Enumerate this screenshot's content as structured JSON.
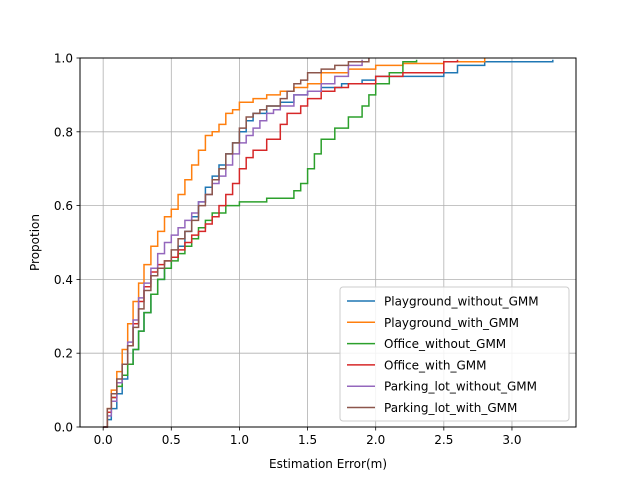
{
  "chart_data": {
    "type": "line",
    "step": true,
    "title": "",
    "xlabel": "Estimation Error(m)",
    "ylabel": "Propotion",
    "xlim": [
      -0.17,
      3.47
    ],
    "ylim": [
      0,
      1
    ],
    "xticks": [
      0.0,
      0.5,
      1.0,
      1.5,
      2.0,
      2.5,
      3.0
    ],
    "xtick_labels": [
      "0.0",
      "0.5",
      "1.0",
      "1.5",
      "2.0",
      "2.5",
      "3.0"
    ],
    "yticks": [
      0.0,
      0.2,
      0.4,
      0.6,
      0.8,
      1.0
    ],
    "ytick_labels": [
      "0.0",
      "0.2",
      "0.4",
      "0.6",
      "0.8",
      "1.0"
    ],
    "grid": true,
    "legend_position": "lower-right",
    "series": [
      {
        "name": "Playground_without_GMM",
        "color": "#1f77b4",
        "points": [
          [
            0.0,
            0.0
          ],
          [
            0.03,
            0.02
          ],
          [
            0.06,
            0.05
          ],
          [
            0.1,
            0.09
          ],
          [
            0.14,
            0.13
          ],
          [
            0.18,
            0.17
          ],
          [
            0.22,
            0.21
          ],
          [
            0.26,
            0.26
          ],
          [
            0.3,
            0.31
          ],
          [
            0.35,
            0.36
          ],
          [
            0.4,
            0.4
          ],
          [
            0.45,
            0.43
          ],
          [
            0.5,
            0.46
          ],
          [
            0.55,
            0.49
          ],
          [
            0.6,
            0.53
          ],
          [
            0.65,
            0.57
          ],
          [
            0.7,
            0.61
          ],
          [
            0.75,
            0.65
          ],
          [
            0.8,
            0.68
          ],
          [
            0.85,
            0.71
          ],
          [
            0.9,
            0.74
          ],
          [
            0.95,
            0.77
          ],
          [
            1.0,
            0.8
          ],
          [
            1.05,
            0.83
          ],
          [
            1.1,
            0.85
          ],
          [
            1.2,
            0.87
          ],
          [
            1.3,
            0.88
          ],
          [
            1.4,
            0.9
          ],
          [
            1.5,
            0.91
          ],
          [
            1.6,
            0.92
          ],
          [
            1.75,
            0.93
          ],
          [
            1.9,
            0.94
          ],
          [
            2.0,
            0.95
          ],
          [
            2.5,
            0.96
          ],
          [
            2.6,
            0.98
          ],
          [
            2.8,
            0.99
          ],
          [
            3.3,
            0.995
          ]
        ]
      },
      {
        "name": "Playground_with_GMM",
        "color": "#ff7f0e",
        "points": [
          [
            0.0,
            0.0
          ],
          [
            0.03,
            0.05
          ],
          [
            0.06,
            0.1
          ],
          [
            0.1,
            0.15
          ],
          [
            0.14,
            0.21
          ],
          [
            0.18,
            0.28
          ],
          [
            0.22,
            0.34
          ],
          [
            0.26,
            0.39
          ],
          [
            0.3,
            0.44
          ],
          [
            0.35,
            0.49
          ],
          [
            0.4,
            0.53
          ],
          [
            0.45,
            0.57
          ],
          [
            0.5,
            0.59
          ],
          [
            0.55,
            0.63
          ],
          [
            0.6,
            0.67
          ],
          [
            0.65,
            0.71
          ],
          [
            0.7,
            0.75
          ],
          [
            0.75,
            0.79
          ],
          [
            0.8,
            0.8
          ],
          [
            0.85,
            0.82
          ],
          [
            0.9,
            0.85
          ],
          [
            0.95,
            0.86
          ],
          [
            1.0,
            0.88
          ],
          [
            1.1,
            0.89
          ],
          [
            1.2,
            0.9
          ],
          [
            1.3,
            0.91
          ],
          [
            1.4,
            0.92
          ],
          [
            1.5,
            0.93
          ],
          [
            1.6,
            0.96
          ],
          [
            1.8,
            0.97
          ],
          [
            2.0,
            0.98
          ],
          [
            2.2,
            0.985
          ],
          [
            2.5,
            0.99
          ],
          [
            2.8,
            1.0
          ]
        ]
      },
      {
        "name": "Office_without_GMM",
        "color": "#2ca02c",
        "points": [
          [
            0.0,
            0.0
          ],
          [
            0.03,
            0.04
          ],
          [
            0.06,
            0.08
          ],
          [
            0.1,
            0.11
          ],
          [
            0.14,
            0.14
          ],
          [
            0.18,
            0.17
          ],
          [
            0.22,
            0.21
          ],
          [
            0.26,
            0.26
          ],
          [
            0.3,
            0.31
          ],
          [
            0.35,
            0.36
          ],
          [
            0.4,
            0.4
          ],
          [
            0.45,
            0.43
          ],
          [
            0.5,
            0.45
          ],
          [
            0.55,
            0.47
          ],
          [
            0.6,
            0.49
          ],
          [
            0.65,
            0.51
          ],
          [
            0.7,
            0.54
          ],
          [
            0.75,
            0.56
          ],
          [
            0.8,
            0.58
          ],
          [
            0.9,
            0.6
          ],
          [
            1.0,
            0.61
          ],
          [
            1.1,
            0.61
          ],
          [
            1.2,
            0.62
          ],
          [
            1.3,
            0.62
          ],
          [
            1.4,
            0.64
          ],
          [
            1.45,
            0.66
          ],
          [
            1.5,
            0.7
          ],
          [
            1.55,
            0.74
          ],
          [
            1.6,
            0.78
          ],
          [
            1.7,
            0.81
          ],
          [
            1.8,
            0.84
          ],
          [
            1.9,
            0.87
          ],
          [
            1.95,
            0.9
          ],
          [
            2.0,
            0.93
          ],
          [
            2.1,
            0.96
          ],
          [
            2.2,
            0.99
          ],
          [
            2.3,
            0.995
          ]
        ]
      },
      {
        "name": "Office_with_GMM",
        "color": "#d62728",
        "points": [
          [
            0.0,
            0.0
          ],
          [
            0.03,
            0.04
          ],
          [
            0.06,
            0.08
          ],
          [
            0.1,
            0.12
          ],
          [
            0.14,
            0.17
          ],
          [
            0.18,
            0.22
          ],
          [
            0.22,
            0.28
          ],
          [
            0.26,
            0.34
          ],
          [
            0.3,
            0.38
          ],
          [
            0.35,
            0.42
          ],
          [
            0.4,
            0.44
          ],
          [
            0.45,
            0.45
          ],
          [
            0.5,
            0.46
          ],
          [
            0.55,
            0.48
          ],
          [
            0.6,
            0.5
          ],
          [
            0.65,
            0.52
          ],
          [
            0.7,
            0.53
          ],
          [
            0.75,
            0.55
          ],
          [
            0.8,
            0.57
          ],
          [
            0.85,
            0.6
          ],
          [
            0.9,
            0.63
          ],
          [
            0.95,
            0.66
          ],
          [
            1.0,
            0.7
          ],
          [
            1.05,
            0.73
          ],
          [
            1.1,
            0.75
          ],
          [
            1.2,
            0.78
          ],
          [
            1.3,
            0.82
          ],
          [
            1.35,
            0.85
          ],
          [
            1.45,
            0.87
          ],
          [
            1.5,
            0.89
          ],
          [
            1.6,
            0.91
          ],
          [
            1.7,
            0.92
          ],
          [
            1.8,
            0.93
          ],
          [
            2.0,
            0.95
          ],
          [
            2.2,
            0.96
          ],
          [
            2.5,
            0.99
          ],
          [
            2.6,
            0.995
          ]
        ]
      },
      {
        "name": "Parking_lot_without_GMM",
        "color": "#9467bd",
        "points": [
          [
            0.0,
            0.0
          ],
          [
            0.03,
            0.03
          ],
          [
            0.06,
            0.07
          ],
          [
            0.1,
            0.12
          ],
          [
            0.14,
            0.17
          ],
          [
            0.18,
            0.23
          ],
          [
            0.22,
            0.29
          ],
          [
            0.26,
            0.35
          ],
          [
            0.3,
            0.39
          ],
          [
            0.35,
            0.43
          ],
          [
            0.4,
            0.47
          ],
          [
            0.45,
            0.5
          ],
          [
            0.5,
            0.52
          ],
          [
            0.55,
            0.54
          ],
          [
            0.6,
            0.56
          ],
          [
            0.65,
            0.58
          ],
          [
            0.7,
            0.61
          ],
          [
            0.75,
            0.63
          ],
          [
            0.8,
            0.66
          ],
          [
            0.85,
            0.68
          ],
          [
            0.9,
            0.71
          ],
          [
            0.95,
            0.74
          ],
          [
            1.0,
            0.77
          ],
          [
            1.05,
            0.79
          ],
          [
            1.1,
            0.81
          ],
          [
            1.15,
            0.83
          ],
          [
            1.2,
            0.85
          ],
          [
            1.25,
            0.86
          ],
          [
            1.3,
            0.87
          ],
          [
            1.4,
            0.9
          ],
          [
            1.5,
            0.91
          ],
          [
            1.6,
            0.93
          ],
          [
            1.7,
            0.95
          ],
          [
            1.8,
            0.98
          ],
          [
            1.9,
            0.995
          ]
        ]
      },
      {
        "name": "Parking_lot_with_GMM",
        "color": "#8c564b",
        "points": [
          [
            0.0,
            0.0
          ],
          [
            0.03,
            0.05
          ],
          [
            0.06,
            0.09
          ],
          [
            0.1,
            0.13
          ],
          [
            0.14,
            0.17
          ],
          [
            0.18,
            0.22
          ],
          [
            0.22,
            0.27
          ],
          [
            0.26,
            0.32
          ],
          [
            0.3,
            0.37
          ],
          [
            0.35,
            0.41
          ],
          [
            0.4,
            0.43
          ],
          [
            0.45,
            0.45
          ],
          [
            0.5,
            0.48
          ],
          [
            0.55,
            0.51
          ],
          [
            0.6,
            0.53
          ],
          [
            0.65,
            0.56
          ],
          [
            0.7,
            0.6
          ],
          [
            0.75,
            0.63
          ],
          [
            0.8,
            0.67
          ],
          [
            0.85,
            0.7
          ],
          [
            0.9,
            0.74
          ],
          [
            0.95,
            0.77
          ],
          [
            1.0,
            0.81
          ],
          [
            1.05,
            0.84
          ],
          [
            1.1,
            0.85
          ],
          [
            1.15,
            0.86
          ],
          [
            1.2,
            0.87
          ],
          [
            1.3,
            0.89
          ],
          [
            1.35,
            0.91
          ],
          [
            1.4,
            0.93
          ],
          [
            1.45,
            0.94
          ],
          [
            1.5,
            0.96
          ],
          [
            1.6,
            0.97
          ],
          [
            1.7,
            0.98
          ],
          [
            1.8,
            0.99
          ],
          [
            1.95,
            1.0
          ]
        ]
      }
    ]
  }
}
